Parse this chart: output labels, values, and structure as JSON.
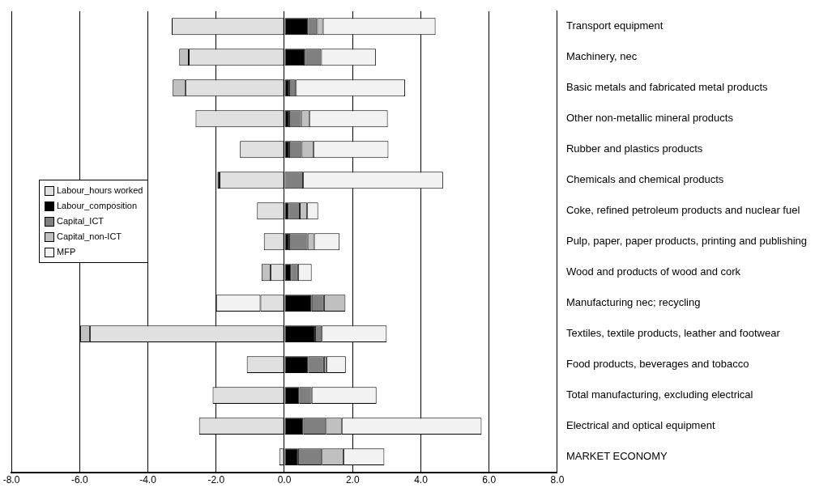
{
  "chart_data": {
    "type": "bar",
    "orientation": "horizontal",
    "stacked": true,
    "categories": [
      "Transport equipment",
      "Machinery, nec",
      "Basic metals and fabricated metal products",
      "Other non-metallic mineral products",
      "Rubber and plastics products",
      "Chemicals and chemical products",
      "Coke, refined petroleum products and nuclear fuel",
      "Pulp, paper, paper products, printing and publishing",
      "Wood and products of wood and cork",
      "Manufacturing nec; recycling",
      "Textiles, textile products, leather and footwear",
      "Food products, beverages and tobacco",
      "Total manufacturing, excluding electrical",
      "Electrical and optical equipment",
      "MARKET ECONOMY"
    ],
    "series": [
      {
        "name": "Labour_hours worked",
        "color": "#e0e0e0",
        "values": [
          -3.3,
          -2.8,
          -2.9,
          -2.6,
          -1.3,
          -1.9,
          -0.8,
          -0.6,
          -0.4,
          -0.7,
          -5.7,
          -1.1,
          -2.1,
          -2.5,
          -0.15
        ]
      },
      {
        "name": "Labour_composition",
        "color": "#000000",
        "values": [
          0.7,
          0.6,
          0.14,
          0.14,
          0.14,
          -0.06,
          0.13,
          0.14,
          0.2,
          0.8,
          0.9,
          0.7,
          0.44,
          0.56,
          0.4
        ]
      },
      {
        "name": "Capital_ICT",
        "color": "#808080",
        "values": [
          0.26,
          0.48,
          0.2,
          0.35,
          0.37,
          0.55,
          0.32,
          0.54,
          0.2,
          0.36,
          0.2,
          0.46,
          0.36,
          0.66,
          0.7
        ]
      },
      {
        "name": "Capital_non-ICT",
        "color": "#c0c0c0",
        "values": [
          0.17,
          -0.28,
          -0.37,
          0.24,
          0.34,
          null,
          0.22,
          0.19,
          -0.27,
          0.63,
          -0.28,
          0.07,
          null,
          0.46,
          0.63
        ]
      },
      {
        "name": "MFP",
        "color": "#f2f2f2",
        "values": [
          3.3,
          1.6,
          3.2,
          2.3,
          2.2,
          4.1,
          0.32,
          0.75,
          0.4,
          -1.3,
          1.9,
          0.57,
          1.9,
          4.1,
          1.2
        ]
      }
    ],
    "xlim": [
      -8,
      8
    ],
    "xticks": [
      {
        "value": -8,
        "label": "-8.0"
      },
      {
        "value": -6,
        "label": "-6.0"
      },
      {
        "value": -4,
        "label": "-4.0"
      },
      {
        "value": -2,
        "label": "-2.0"
      },
      {
        "value": 0,
        "label": "0.0"
      },
      {
        "value": 2,
        "label": "2.0"
      },
      {
        "value": 4,
        "label": "4.0"
      },
      {
        "value": 6,
        "label": "6.0"
      },
      {
        "value": 8,
        "label": "8.0"
      }
    ],
    "grid": "x",
    "legend": "left"
  }
}
